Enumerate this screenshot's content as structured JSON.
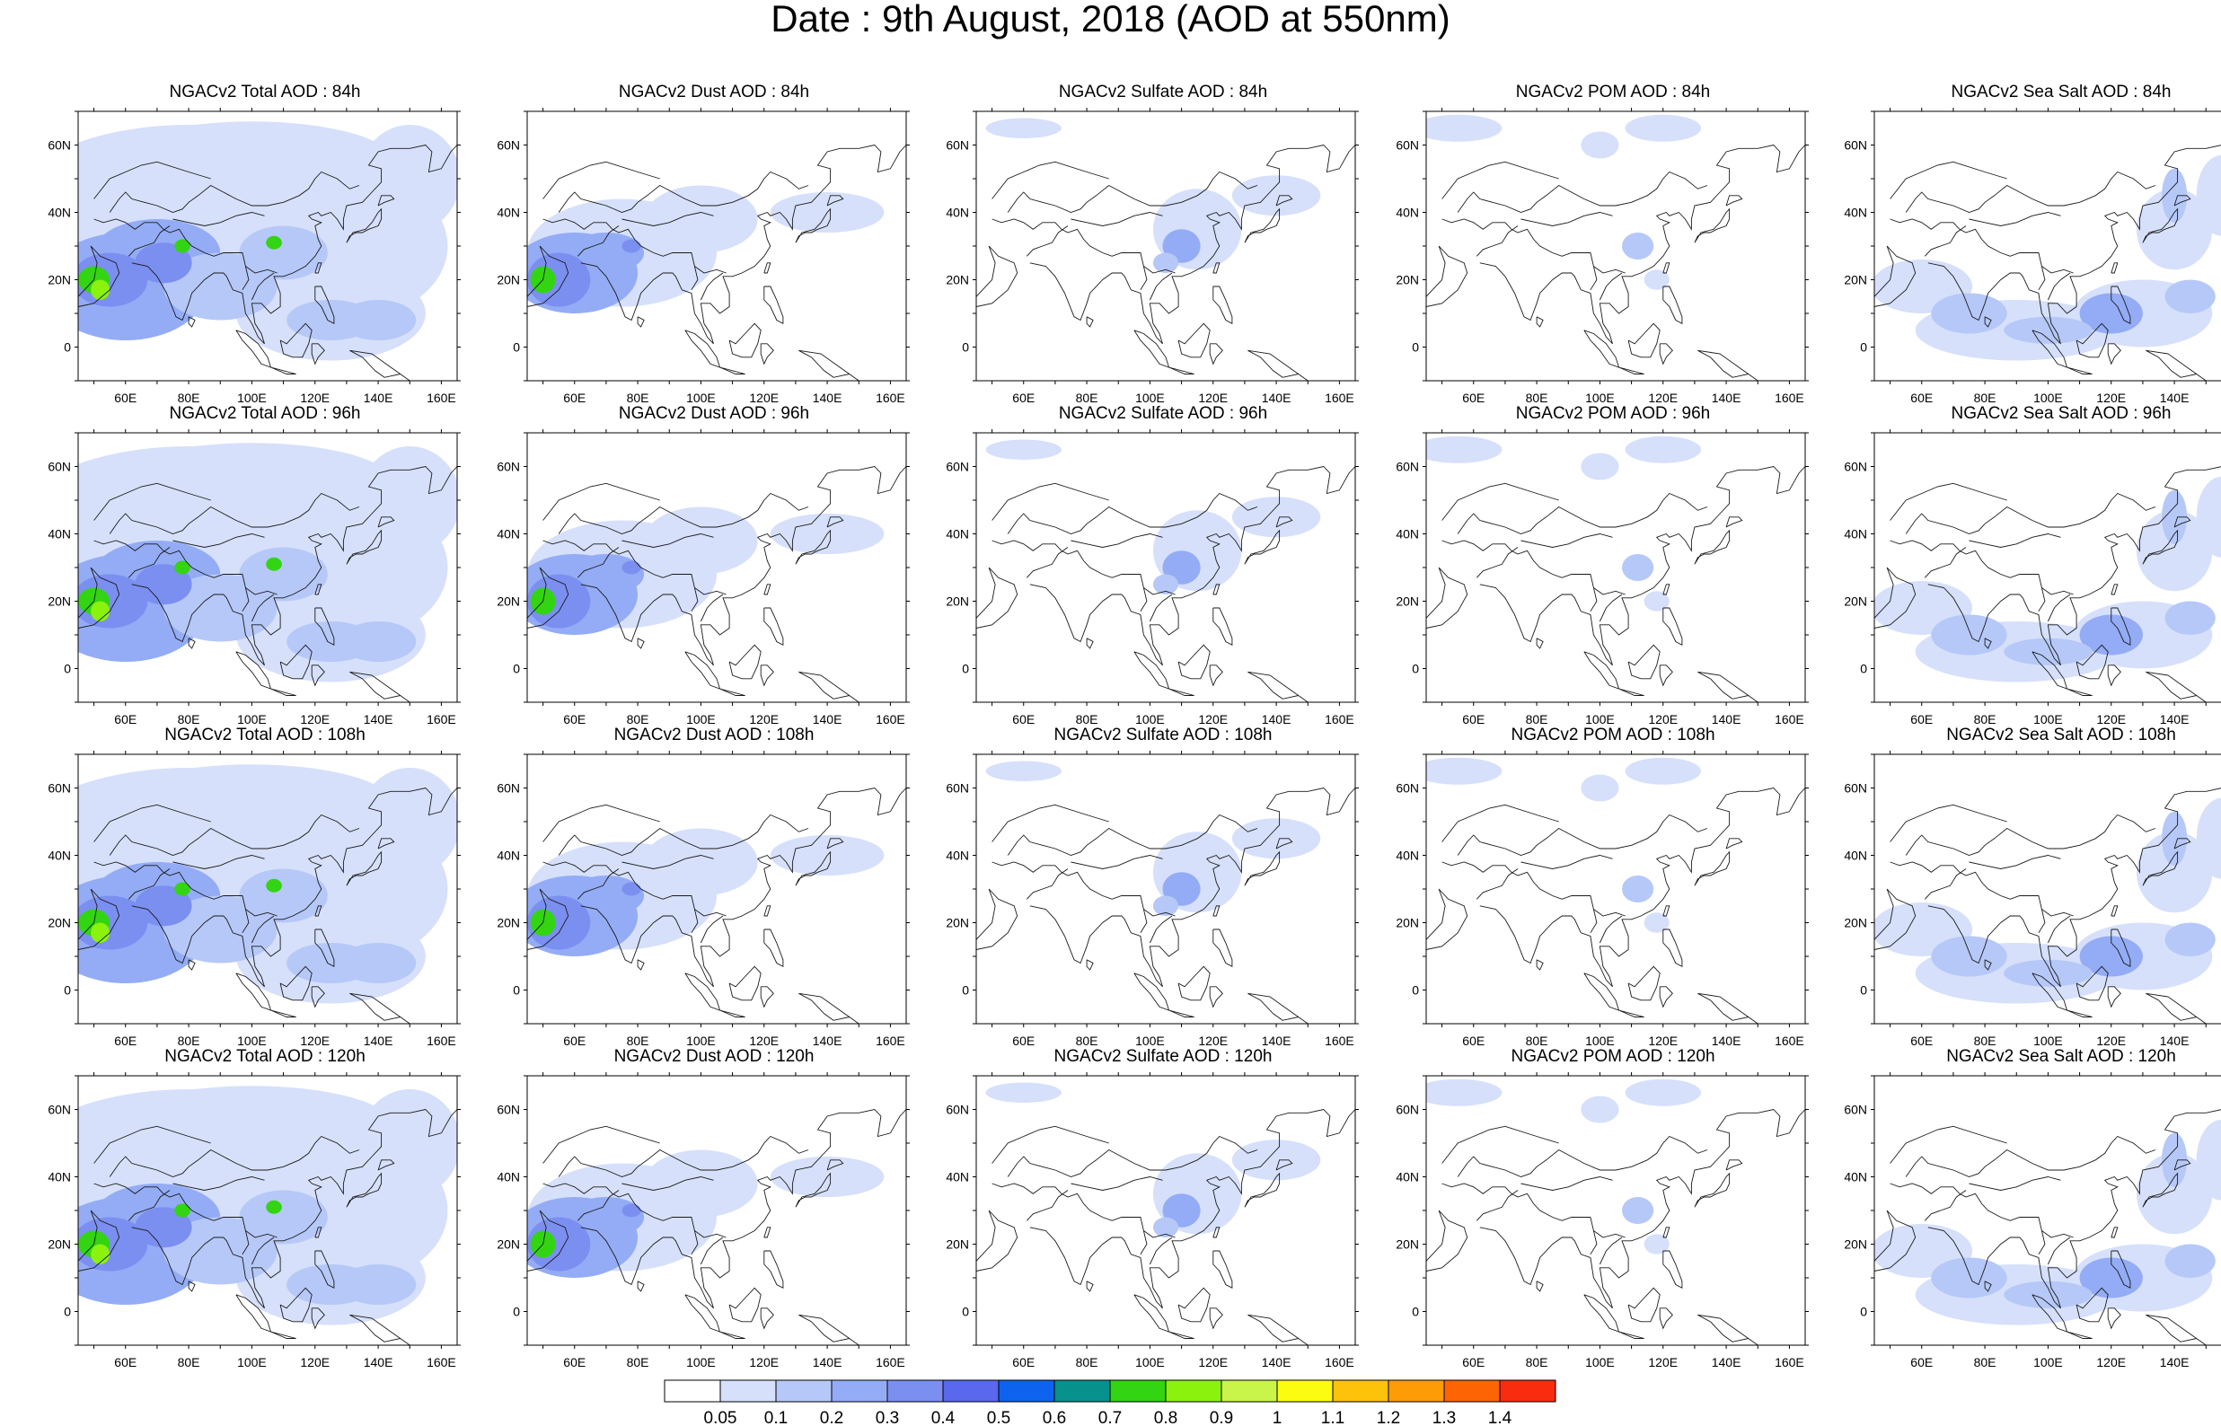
{
  "title": "Date : 9th August, 2018 (AOD at 550nm)",
  "chart_data": {
    "type": "heatmap",
    "layout": "grid",
    "rows": 4,
    "columns": 5,
    "x_ticks": [
      "60E",
      "80E",
      "100E",
      "120E",
      "140E",
      "160E"
    ],
    "y_ticks": [
      "60N",
      "40N",
      "20N",
      "0"
    ],
    "colorbar": {
      "labels": [
        "0.05",
        "0.1",
        "0.2",
        "0.3",
        "0.4",
        "0.5",
        "0.6",
        "0.7",
        "0.8",
        "0.9",
        "1",
        "1.1",
        "1.2",
        "1.3",
        "1.4"
      ],
      "colors": [
        "#ffffff",
        "#d6e0fb",
        "#b6c8f8",
        "#93acf5",
        "#7b8ff1",
        "#5a68ee",
        "#0e63ee",
        "#06918d",
        "#33d412",
        "#8af20c",
        "#c9f54a",
        "#fbfc0f",
        "#fdc20a",
        "#fd9c06",
        "#fd6404",
        "#f92c10"
      ]
    },
    "panels": [
      {
        "title": "NGACv2 Total AOD : 84h",
        "species": "total",
        "lead": "84h"
      },
      {
        "title": "NGACv2 Dust AOD : 84h",
        "species": "dust",
        "lead": "84h"
      },
      {
        "title": "NGACv2 Sulfate AOD : 84h",
        "species": "sulfate",
        "lead": "84h"
      },
      {
        "title": "NGACv2 POM AOD : 84h",
        "species": "pom",
        "lead": "84h"
      },
      {
        "title": "NGACv2 Sea Salt AOD : 84h",
        "species": "seasalt",
        "lead": "84h"
      },
      {
        "title": "NGACv2 Total AOD : 96h",
        "species": "total",
        "lead": "96h"
      },
      {
        "title": "NGACv2 Dust AOD : 96h",
        "species": "dust",
        "lead": "96h"
      },
      {
        "title": "NGACv2 Sulfate AOD : 96h",
        "species": "sulfate",
        "lead": "96h"
      },
      {
        "title": "NGACv2 POM AOD : 96h",
        "species": "pom",
        "lead": "96h"
      },
      {
        "title": "NGACv2 Sea Salt AOD : 96h",
        "species": "seasalt",
        "lead": "96h"
      },
      {
        "title": "NGACv2 Total AOD : 108h",
        "species": "total",
        "lead": "108h"
      },
      {
        "title": "NGACv2 Dust AOD : 108h",
        "species": "dust",
        "lead": "108h"
      },
      {
        "title": "NGACv2 Sulfate AOD : 108h",
        "species": "sulfate",
        "lead": "108h"
      },
      {
        "title": "NGACv2 POM AOD : 108h",
        "species": "pom",
        "lead": "108h"
      },
      {
        "title": "NGACv2 Sea Salt AOD : 108h",
        "species": "seasalt",
        "lead": "108h"
      },
      {
        "title": "NGACv2 Total AOD : 120h",
        "species": "total",
        "lead": "120h"
      },
      {
        "title": "NGACv2 Dust AOD : 120h",
        "species": "dust",
        "lead": "120h"
      },
      {
        "title": "NGACv2 Sulfate AOD : 120h",
        "species": "sulfate",
        "lead": "120h"
      },
      {
        "title": "NGACv2 POM AOD : 120h",
        "species": "pom",
        "lead": "120h"
      },
      {
        "title": "NGACv2 Sea Salt  AOD : 120h",
        "species": "seasalt",
        "lead": "120h"
      }
    ]
  }
}
